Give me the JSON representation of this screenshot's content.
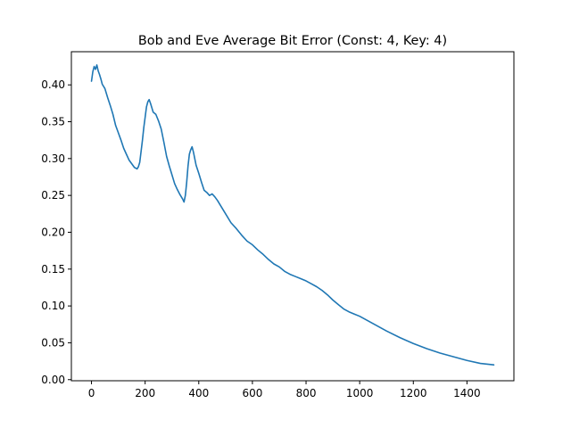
{
  "chart_data": {
    "type": "line",
    "title": "Bob and Eve Average Bit Error (Const: 4, Key: 4)",
    "xlabel": "",
    "ylabel": "",
    "xlim": [
      -75,
      1575
    ],
    "ylim": [
      -0.0015,
      0.445
    ],
    "xticks": [
      0,
      200,
      400,
      600,
      800,
      1000,
      1200,
      1400
    ],
    "yticks": [
      0.0,
      0.05,
      0.1,
      0.15,
      0.2,
      0.25,
      0.3,
      0.35,
      0.4
    ],
    "grid": false,
    "series": [
      {
        "color": "#1f77b4",
        "x": [
          0,
          5,
          10,
          15,
          20,
          25,
          30,
          35,
          40,
          50,
          60,
          70,
          80,
          90,
          100,
          110,
          120,
          130,
          140,
          150,
          160,
          170,
          175,
          180,
          185,
          190,
          195,
          200,
          205,
          210,
          215,
          220,
          225,
          230,
          240,
          250,
          260,
          270,
          280,
          290,
          300,
          310,
          320,
          330,
          340,
          345,
          350,
          355,
          360,
          365,
          370,
          375,
          380,
          385,
          390,
          400,
          410,
          420,
          430,
          440,
          450,
          460,
          470,
          480,
          500,
          520,
          540,
          560,
          580,
          600,
          620,
          640,
          660,
          680,
          700,
          720,
          740,
          760,
          780,
          800,
          820,
          840,
          860,
          880,
          900,
          920,
          940,
          960,
          980,
          1000,
          1050,
          1100,
          1150,
          1200,
          1250,
          1300,
          1350,
          1400,
          1450,
          1500
        ],
        "y": [
          0.405,
          0.418,
          0.425,
          0.421,
          0.427,
          0.419,
          0.414,
          0.408,
          0.401,
          0.395,
          0.383,
          0.372,
          0.36,
          0.345,
          0.335,
          0.325,
          0.314,
          0.306,
          0.298,
          0.293,
          0.288,
          0.286,
          0.289,
          0.295,
          0.31,
          0.325,
          0.342,
          0.356,
          0.37,
          0.377,
          0.38,
          0.375,
          0.369,
          0.363,
          0.36,
          0.351,
          0.34,
          0.322,
          0.303,
          0.29,
          0.278,
          0.266,
          0.258,
          0.251,
          0.245,
          0.241,
          0.25,
          0.268,
          0.29,
          0.306,
          0.312,
          0.316,
          0.309,
          0.3,
          0.291,
          0.28,
          0.268,
          0.257,
          0.254,
          0.25,
          0.252,
          0.248,
          0.243,
          0.237,
          0.225,
          0.213,
          0.205,
          0.196,
          0.188,
          0.183,
          0.176,
          0.17,
          0.163,
          0.157,
          0.153,
          0.147,
          0.143,
          0.14,
          0.137,
          0.134,
          0.13,
          0.126,
          0.121,
          0.115,
          0.108,
          0.102,
          0.096,
          0.092,
          0.089,
          0.086,
          0.076,
          0.066,
          0.057,
          0.049,
          0.042,
          0.036,
          0.031,
          0.026,
          0.022,
          0.02
        ]
      }
    ]
  }
}
